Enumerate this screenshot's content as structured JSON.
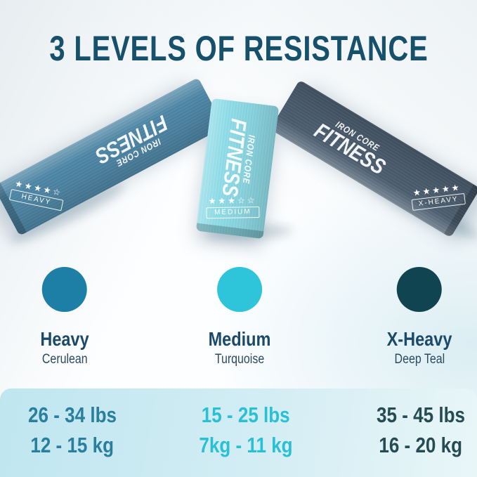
{
  "title": "3 LEVELS OF RESISTANCE",
  "title_color": "#17506b",
  "brand": {
    "line1": "IRON CORE",
    "line2": "FITNESS"
  },
  "bands": [
    {
      "name": "Heavy",
      "label": "HEAVY",
      "stars": "★★★★☆",
      "color": "#4d86a5"
    },
    {
      "name": "Medium",
      "label": "MEDIUM",
      "stars": "★★★☆☆",
      "color": "#8edce8"
    },
    {
      "name": "X-Heavy",
      "label": "X-HEAVY",
      "stars": "★★★★★",
      "color": "#4a5c6e"
    }
  ],
  "levels": [
    {
      "name": "Heavy",
      "color_name": "Cerulean",
      "swatch": "#1e7fa6",
      "lbs": "26 - 34 lbs",
      "kg": "12 - 15 kg",
      "text_color": "#2a7f9e"
    },
    {
      "name": "Medium",
      "color_name": "Turquoise",
      "swatch": "#2ec4d9",
      "lbs": "15 - 25 lbs",
      "kg": "7kg - 11 kg",
      "text_color": "#29bfd4"
    },
    {
      "name": "X-Heavy",
      "color_name": "Deep Teal",
      "swatch": "#0f4450",
      "lbs": "35 - 45 lbs",
      "kg": "16 - 20 kg",
      "text_color": "#264c53"
    }
  ]
}
